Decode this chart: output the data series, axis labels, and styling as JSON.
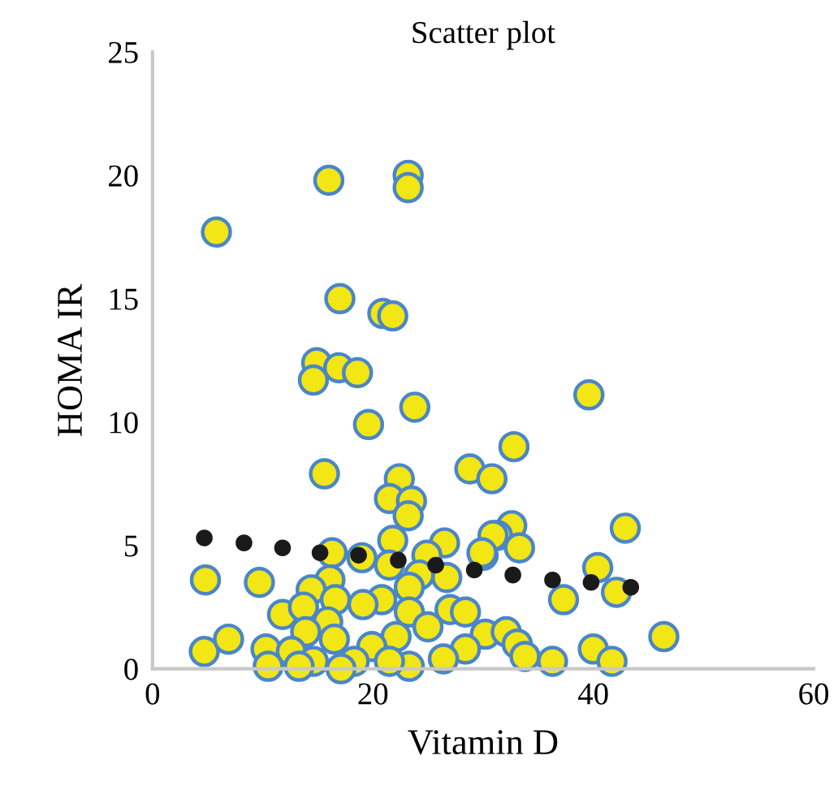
{
  "chart_data": {
    "type": "scatter",
    "title": "Scatter plot",
    "xlabel": "Vitamin D",
    "ylabel": "HOMA IR",
    "xlim": [
      0,
      60
    ],
    "xticks": [
      0,
      20,
      40,
      60
    ],
    "ylim": [
      0,
      25
    ],
    "yticks": [
      0,
      5,
      10,
      15,
      20,
      25
    ],
    "marker": "circle",
    "series": [
      {
        "color": "#f2e614",
        "x": [
          5.8,
          16.0,
          23.2,
          23.2,
          17.0,
          20.9,
          21.8,
          14.9,
          14.6,
          16.9,
          18.6,
          23.8,
          19.6,
          39.6,
          15.6,
          32.8,
          28.8,
          30.8,
          22.4,
          21.5,
          23.5,
          23.2,
          42.9,
          32.6,
          31.3,
          33.3,
          30.0,
          21.8,
          26.5,
          24.9,
          21.5,
          26.7,
          24.2,
          23.3,
          20.8,
          19.0,
          40.4,
          42.1,
          37.3,
          23.3,
          27.0,
          28.4,
          25.0,
          22.1,
          19.9,
          30.2,
          32.1,
          33.1,
          46.4,
          40.0,
          41.7,
          36.3,
          33.8,
          28.4,
          26.4,
          23.3,
          4.8,
          9.7,
          16.3,
          16.1,
          14.4,
          16.6,
          11.8,
          13.7,
          15.9,
          19.1,
          13.9,
          16.5,
          4.7,
          6.9,
          10.3,
          12.6,
          10.5,
          14.6,
          13.3,
          18.3,
          21.5,
          17.1,
          30.9,
          29.9
        ],
        "values": [
          17.7,
          19.8,
          20.0,
          19.5,
          15.0,
          14.4,
          14.3,
          12.4,
          11.7,
          12.2,
          12.0,
          10.6,
          9.9,
          11.1,
          7.9,
          9.0,
          8.1,
          7.7,
          7.7,
          6.9,
          6.8,
          6.2,
          5.7,
          5.8,
          5.4,
          4.9,
          4.6,
          5.2,
          5.1,
          4.6,
          4.2,
          3.7,
          3.8,
          3.3,
          2.8,
          4.5,
          4.1,
          3.1,
          2.8,
          2.3,
          2.4,
          2.3,
          1.7,
          1.3,
          0.9,
          1.4,
          1.5,
          1.0,
          1.3,
          0.8,
          0.3,
          0.3,
          0.5,
          0.8,
          0.4,
          0.1,
          3.6,
          3.5,
          4.7,
          3.6,
          3.2,
          2.8,
          2.2,
          2.5,
          1.9,
          2.6,
          1.5,
          1.2,
          0.7,
          1.2,
          0.8,
          0.7,
          0.1,
          0.3,
          0.1,
          0.3,
          0.3,
          0.0,
          5.4,
          4.7
        ]
      },
      {
        "color": "#1a1a1a",
        "x": [
          4.7,
          8.3,
          11.8,
          15.2,
          18.7,
          22.3,
          25.7,
          29.2,
          32.7,
          36.3,
          39.8,
          43.4
        ],
        "values": [
          5.3,
          5.1,
          4.9,
          4.7,
          4.6,
          4.4,
          4.2,
          4.0,
          3.8,
          3.6,
          3.5,
          3.3
        ]
      }
    ]
  }
}
